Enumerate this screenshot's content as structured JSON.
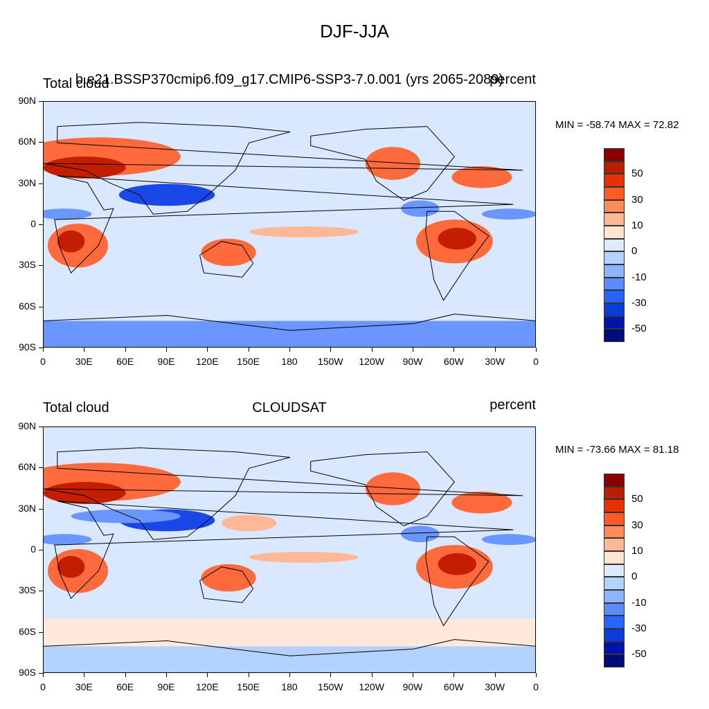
{
  "figure": {
    "title": "DJF-JJA"
  },
  "panels": [
    {
      "id": "model",
      "left_label": "Total cloud",
      "center_label": "b.e21.BSSP370cmip6.f09_g17.CMIP6-SSP3-7.0.001 (yrs 2065-2089)",
      "right_label": "percent",
      "stats": "MIN = -58.74 MAX =  72.82"
    },
    {
      "id": "obs",
      "left_label": "Total cloud",
      "center_label": "CLOUDSAT",
      "right_label": "percent",
      "stats": "MIN = -73.66 MAX =  81.18"
    }
  ],
  "axes": {
    "lat_labels": [
      "90N",
      "60N",
      "30N",
      "0",
      "30S",
      "60S",
      "90S"
    ],
    "lon_labels": [
      "0",
      "30E",
      "60E",
      "90E",
      "120E",
      "150E",
      "180",
      "150W",
      "120W",
      "90W",
      "60W",
      "30W",
      "0"
    ]
  },
  "colorbar": {
    "labels": [
      "50",
      "30",
      "10",
      "0",
      "-10",
      "-30",
      "-50"
    ],
    "colors": [
      "#8a0000",
      "#b81e00",
      "#e63200",
      "#ff5a28",
      "#ff8c5a",
      "#ffb896",
      "#ffe6d2",
      "#dcebff",
      "#b4d2ff",
      "#8cb4ff",
      "#5a8cff",
      "#2864ff",
      "#0a3cdc",
      "#0014aa",
      "#000a78"
    ]
  },
  "map_colors": {
    "background": "#d9e8ff",
    "strong_pos": "#c41e00",
    "pos": "#ff6a3c",
    "weak_pos": "#ffb896",
    "neutral": "#ffe9dc",
    "weak_neg": "#b4d2ff",
    "neg": "#6a96ff",
    "strong_neg": "#1a48e8"
  }
}
